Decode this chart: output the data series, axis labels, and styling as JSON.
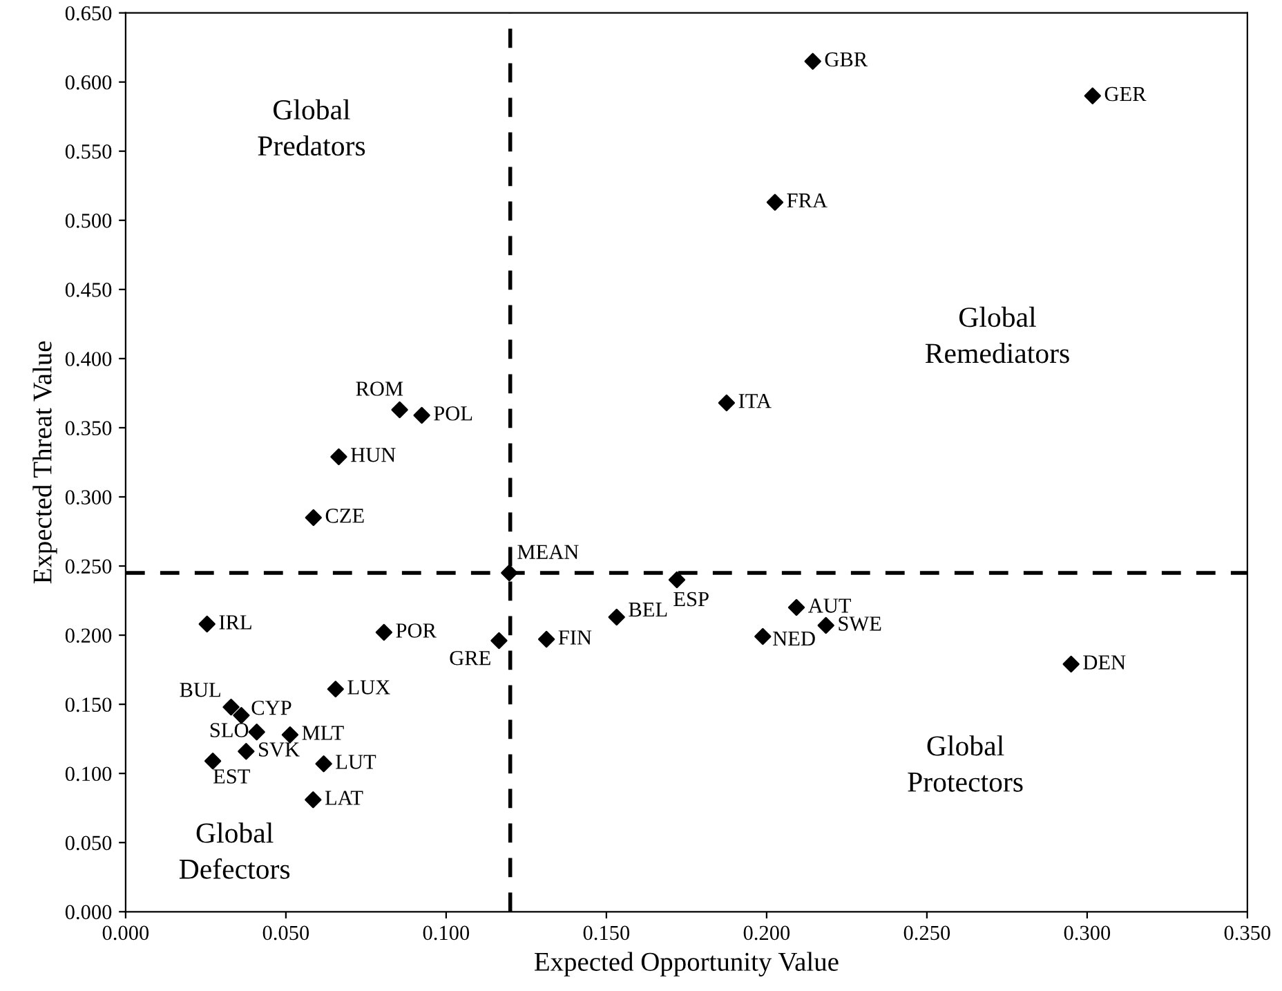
{
  "chart_data": {
    "type": "scatter",
    "xlabel": "Expected Opportunity Value",
    "ylabel": "Expected Threat Value",
    "marker": "diamond",
    "grid": false,
    "legend": false,
    "x": [
      0.2144,
      0.3017,
      0.2026,
      0.1875,
      0.1197,
      0.0254,
      0.0806,
      0.1165,
      0.0655,
      0.0329,
      0.0361,
      0.0409,
      0.0513,
      0.0376,
      0.0272,
      0.0618,
      0.0585,
      0.172,
      0.1532,
      0.1313,
      0.2093,
      0.1988,
      0.2185,
      0.295,
      0.0855,
      0.0924,
      0.0665,
      0.0586
    ],
    "series": [
      {
        "color": "#000000",
        "values": [
          0.615,
          0.59,
          0.513,
          0.368,
          0.245,
          0.208,
          0.202,
          0.196,
          0.161,
          0.148,
          0.142,
          0.13,
          0.128,
          0.116,
          0.109,
          0.107,
          0.081,
          0.24,
          0.213,
          0.197,
          0.22,
          0.199,
          0.207,
          0.179,
          0.363,
          0.359,
          0.329,
          0.285
        ]
      }
    ],
    "annotations": [
      {
        "text": "GBR",
        "x": 0.2144,
        "y": 0.615
      },
      {
        "text": "GER",
        "x": 0.3017,
        "y": 0.59
      },
      {
        "text": "FRA",
        "x": 0.2026,
        "y": 0.513
      },
      {
        "text": "ITA",
        "x": 0.1875,
        "y": 0.368
      },
      {
        "text": "MEAN",
        "x": 0.1197,
        "y": 0.245
      },
      {
        "text": "IRL",
        "x": 0.0254,
        "y": 0.208
      },
      {
        "text": "POR",
        "x": 0.0806,
        "y": 0.202
      },
      {
        "text": "GRE",
        "x": 0.1165,
        "y": 0.196
      },
      {
        "text": "LUX",
        "x": 0.0655,
        "y": 0.161
      },
      {
        "text": "BUL",
        "x": 0.0329,
        "y": 0.148
      },
      {
        "text": "CYP",
        "x": 0.0361,
        "y": 0.142
      },
      {
        "text": "SLO",
        "x": 0.0409,
        "y": 0.13
      },
      {
        "text": "MLT",
        "x": 0.0513,
        "y": 0.128
      },
      {
        "text": "SVK",
        "x": 0.0376,
        "y": 0.116
      },
      {
        "text": "EST",
        "x": 0.0272,
        "y": 0.109
      },
      {
        "text": "LUT",
        "x": 0.0618,
        "y": 0.107
      },
      {
        "text": "LAT",
        "x": 0.0585,
        "y": 0.081
      },
      {
        "text": "ESP",
        "x": 0.172,
        "y": 0.24
      },
      {
        "text": "BEL",
        "x": 0.1532,
        "y": 0.213
      },
      {
        "text": "FIN",
        "x": 0.1313,
        "y": 0.197
      },
      {
        "text": "AUT",
        "x": 0.2093,
        "y": 0.22
      },
      {
        "text": "NED",
        "x": 0.1988,
        "y": 0.199
      },
      {
        "text": "SWE",
        "x": 0.2185,
        "y": 0.207
      },
      {
        "text": "DEN",
        "x": 0.295,
        "y": 0.179
      },
      {
        "text": "ROM",
        "x": 0.0855,
        "y": 0.363
      },
      {
        "text": "POL",
        "x": 0.0924,
        "y": 0.359
      },
      {
        "text": "HUN",
        "x": 0.0665,
        "y": 0.329
      },
      {
        "text": "CZE",
        "x": 0.0586,
        "y": 0.285
      },
      "Global\nPredators",
      "Global\nRemediators",
      "Global\nProtectors",
      "Global\nDefectors"
    ],
    "ref_lines": [
      {
        "axis": "x",
        "value": 0.12,
        "color": "#000000",
        "line_style": "dashed"
      },
      {
        "axis": "y",
        "value": 0.245,
        "color": "#000000",
        "line_style": "dashed"
      }
    ],
    "xlim": [
      0,
      0.35
    ],
    "xticks": [
      {
        "value": 0,
        "label": "0.000"
      },
      {
        "value": 0.05,
        "label": "0.050"
      },
      {
        "value": 0.1,
        "label": "0.100"
      },
      {
        "value": 0.15,
        "label": "0.150"
      },
      {
        "value": 0.2,
        "label": "0.200"
      },
      {
        "value": 0.25,
        "label": "0.250"
      },
      {
        "value": 0.3,
        "label": "0.300"
      },
      {
        "value": 0.35,
        "label": "0.350"
      }
    ],
    "ylim": [
      0,
      0.65
    ],
    "yticks": [
      {
        "value": 0,
        "label": "0.000"
      },
      {
        "value": 0.05,
        "label": "0.050"
      },
      {
        "value": 0.1,
        "label": "0.100"
      },
      {
        "value": 0.15,
        "label": "0.150"
      },
      {
        "value": 0.2,
        "label": "0.200"
      },
      {
        "value": 0.25,
        "label": "0.250"
      },
      {
        "value": 0.3,
        "label": "0.300"
      },
      {
        "value": 0.35,
        "label": "0.350"
      },
      {
        "value": 0.4,
        "label": "0.400"
      },
      {
        "value": 0.45,
        "label": "0.450"
      },
      {
        "value": 0.5,
        "label": "0.500"
      },
      {
        "value": 0.55,
        "label": "0.550"
      },
      {
        "value": 0.6,
        "label": "0.600"
      },
      {
        "value": 0.65,
        "label": "0.650"
      }
    ]
  }
}
